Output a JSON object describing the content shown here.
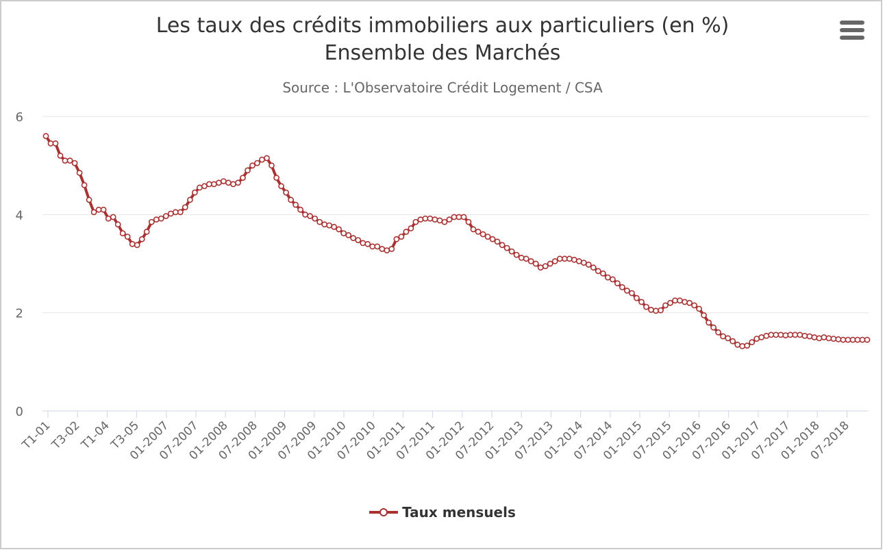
{
  "chart_data": {
    "type": "line",
    "title_line1": "Les taux des crédits immobiliers aux particuliers (en %)",
    "title_line2": "Ensemble des Marchés",
    "subtitle": "Source : L'Observatoire Crédit Logement / CSA",
    "xlabel": "",
    "ylabel": "",
    "ylim": [
      0,
      6
    ],
    "yticks": [
      0,
      2,
      4,
      6
    ],
    "grid": true,
    "legend_position": "bottom",
    "x_tick_labels": [
      "T1-01",
      "T3-02",
      "T1-04",
      "T3-05",
      "01-2007",
      "07-2007",
      "01-2008",
      "07-2008",
      "01-2009",
      "07-2009",
      "01-2010",
      "07-2010",
      "01-2011",
      "07-2011",
      "01-2012",
      "07-2012",
      "01-2013",
      "07-2013",
      "01-2014",
      "07-2014",
      "01-2015",
      "07-2015",
      "01-2016",
      "07-2016",
      "01-2017",
      "07-2017",
      "01-2018",
      "07-2018"
    ],
    "series": [
      {
        "name": "Taux mensuels",
        "color": "#a83232",
        "values": [
          5.6,
          5.45,
          5.45,
          5.2,
          5.1,
          5.1,
          5.05,
          4.85,
          4.6,
          4.3,
          4.05,
          4.1,
          4.1,
          3.92,
          3.95,
          3.8,
          3.62,
          3.55,
          3.4,
          3.38,
          3.5,
          3.65,
          3.85,
          3.9,
          3.92,
          3.97,
          4.02,
          4.05,
          4.05,
          4.15,
          4.3,
          4.45,
          4.55,
          4.58,
          4.62,
          4.62,
          4.65,
          4.68,
          4.65,
          4.62,
          4.65,
          4.75,
          4.9,
          5.0,
          5.05,
          5.12,
          5.15,
          5.0,
          4.75,
          4.58,
          4.45,
          4.3,
          4.2,
          4.1,
          4.0,
          3.97,
          3.92,
          3.85,
          3.8,
          3.78,
          3.75,
          3.7,
          3.62,
          3.58,
          3.52,
          3.48,
          3.42,
          3.4,
          3.35,
          3.35,
          3.3,
          3.27,
          3.3,
          3.5,
          3.55,
          3.65,
          3.72,
          3.85,
          3.9,
          3.92,
          3.92,
          3.9,
          3.88,
          3.85,
          3.9,
          3.95,
          3.95,
          3.95,
          3.85,
          3.7,
          3.65,
          3.6,
          3.55,
          3.5,
          3.45,
          3.38,
          3.32,
          3.25,
          3.18,
          3.12,
          3.1,
          3.05,
          3.0,
          2.92,
          2.95,
          3.0,
          3.05,
          3.1,
          3.1,
          3.1,
          3.08,
          3.05,
          3.02,
          2.98,
          2.92,
          2.85,
          2.8,
          2.72,
          2.68,
          2.6,
          2.52,
          2.45,
          2.4,
          2.3,
          2.22,
          2.12,
          2.06,
          2.04,
          2.05,
          2.15,
          2.2,
          2.25,
          2.25,
          2.22,
          2.2,
          2.15,
          2.08,
          1.95,
          1.8,
          1.7,
          1.6,
          1.52,
          1.48,
          1.42,
          1.35,
          1.32,
          1.33,
          1.4,
          1.47,
          1.5,
          1.53,
          1.55,
          1.55,
          1.55,
          1.54,
          1.55,
          1.55,
          1.55,
          1.53,
          1.52,
          1.5,
          1.48,
          1.5,
          1.48,
          1.47,
          1.46,
          1.45,
          1.45,
          1.45,
          1.45,
          1.45,
          1.45
        ]
      }
    ]
  },
  "menu": {
    "icon": "hamburger-menu-icon"
  },
  "legend": {
    "label": "Taux mensuels"
  }
}
